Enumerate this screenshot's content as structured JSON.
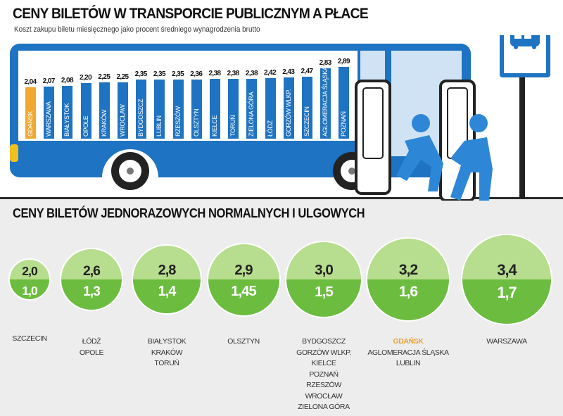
{
  "title": "CENY BILETÓW W TRANSPORCIE PUBLICZNYM A PŁACE",
  "subtitle": "Koszt zakupu biletu miesięcznego jako procent średniego wynagrodzenia brutto",
  "title2": "CENY BILETÓW JEDNORAZOWYCH NORMALNYCH I ULGOWYCH",
  "colors": {
    "bus_blue": "#1e73c2",
    "highlight": "#f0a830",
    "green_light": "#b7dd8e",
    "green_dark": "#6cbd3f"
  },
  "icons": [
    "bus-stop-sign-icon",
    "people-boarding-icon",
    "bus-illustration"
  ],
  "chart_data": [
    {
      "type": "bar",
      "categories": [
        "GDAŃSK",
        "WARSZAWA",
        "BIAŁYSTOK",
        "OPOLE",
        "KRAKÓW",
        "WROCŁAW",
        "BYDGOSZCZ",
        "LUBLIN",
        "RZESZÓW",
        "OLSZTYN",
        "KIELCE",
        "TORUŃ",
        "ZIELONA GÓRA",
        "ŁÓDŹ",
        "GORZÓW WLKP.",
        "SZCZECIN",
        "AGLOMERACJA ŚLĄSKA",
        "POZNAŃ"
      ],
      "values": [
        "2,04",
        "2,07",
        "2,08",
        "2,20",
        "2,25",
        "2,25",
        "2,35",
        "2,35",
        "2,35",
        "2,36",
        "2,38",
        "2,38",
        "2,38",
        "2,42",
        "2,43",
        "2,47",
        "2,83",
        "2,89"
      ],
      "highlighted": "GDAŃSK"
    },
    {
      "type": "bubble",
      "groups": [
        {
          "normal": "2,0",
          "reduced": "1,0",
          "cities": [
            "SZCZECIN"
          ]
        },
        {
          "normal": "2,6",
          "reduced": "1,3",
          "cities": [
            "ŁÓDŹ",
            "OPOLE"
          ]
        },
        {
          "normal": "2,8",
          "reduced": "1,4",
          "cities": [
            "BIAŁYSTOK",
            "KRAKÓW",
            "TORUŃ"
          ]
        },
        {
          "normal": "2,9",
          "reduced": "1,45",
          "cities": [
            "OLSZTYN"
          ]
        },
        {
          "normal": "3,0",
          "reduced": "1,5",
          "cities": [
            "BYDGOSZCZ",
            "GORZÓW WLKP.",
            "KIELCE",
            "POZNAŃ",
            "RZESZÓW",
            "WROCŁAW",
            "ZIELONA GÓRA"
          ]
        },
        {
          "normal": "3,2",
          "reduced": "1,6",
          "cities": [
            "GDAŃSK",
            "AGLOMERACJA ŚLĄSKA",
            "LUBLIN"
          ]
        },
        {
          "normal": "3,4",
          "reduced": "1,7",
          "cities": [
            "WARSZAWA"
          ]
        }
      ],
      "highlighted": "GDAŃSK"
    }
  ]
}
